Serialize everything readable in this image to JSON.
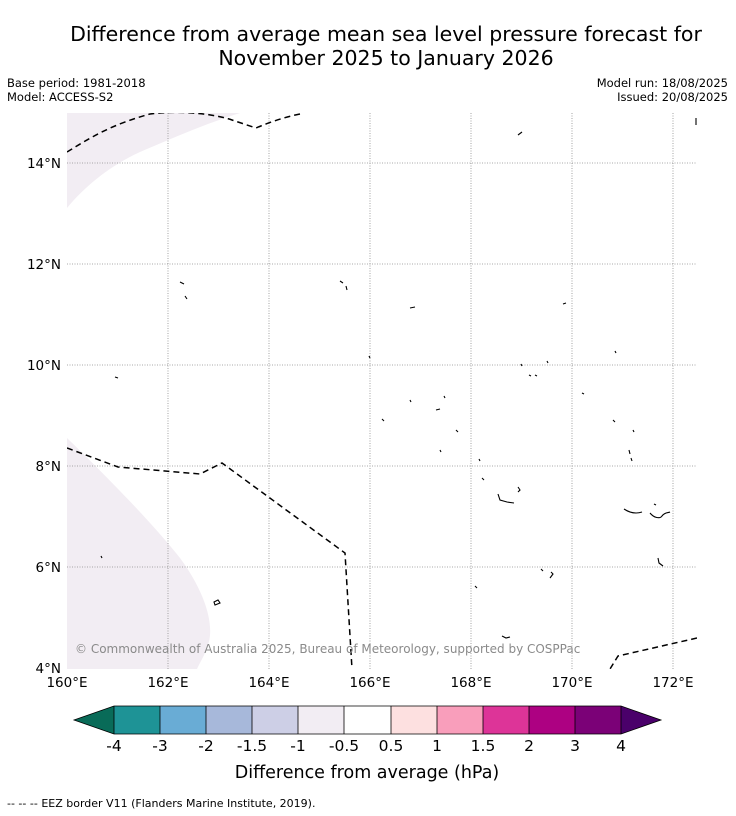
{
  "header": {
    "title_line1": "Difference from average mean sea level pressure forecast for",
    "title_line2": "November 2025 to January 2026",
    "base_period": "Base period: 1981-2018",
    "model": "Model: ACCESS-S2",
    "model_run": "Model run: 18/08/2025",
    "issued": "Issued: 20/08/2025"
  },
  "map": {
    "lon_ticks": [
      "160°E",
      "162°E",
      "164°E",
      "166°E",
      "168°E",
      "170°E",
      "172°E"
    ],
    "lat_ticks": [
      "14°N",
      "12°N",
      "10°N",
      "8°N",
      "6°N",
      "4°N"
    ],
    "copyright": "© Commonwealth of Australia 2025, Bureau of Meteorology, supported by COSPPac",
    "anomaly_fill_color": "#f2edf3",
    "anomaly_fill_category": "-1 to -0.5 hPa",
    "eez_border_style": "dashed",
    "gridlines": true
  },
  "colorbar": {
    "label": "Difference from average (hPa)",
    "tick_labels": [
      "-4",
      "-3",
      "-2",
      "-1.5",
      "-1",
      "-0.5",
      "0.5",
      "1",
      "1.5",
      "2",
      "3",
      "4"
    ],
    "colors": [
      "#096b58",
      "#1e9396",
      "#69acd5",
      "#a7b8da",
      "#cdcfe6",
      "#f2edf3",
      "#ffffff",
      "#fde0e0",
      "#f99ebb",
      "#dd3498",
      "#ad0182",
      "#7b0177",
      "#4a006a"
    ]
  },
  "legend": {
    "dash_symbol": "--  --  --",
    "eez_label": "EEZ border V11 (Flanders Marine Institute, 2019)."
  }
}
